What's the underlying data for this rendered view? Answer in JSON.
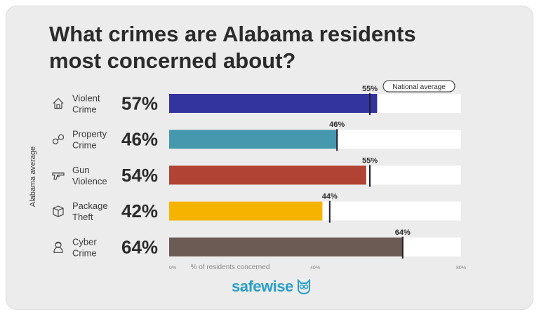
{
  "title": "What crimes are Alabama residents most concerned about?",
  "y_axis_label": "Alabama average",
  "legend_label": "National average",
  "brand": "safewise",
  "chart_data": {
    "type": "bar",
    "orientation": "horizontal",
    "categories": [
      {
        "line1": "Violent",
        "line2": "Crime",
        "icon": "house-icon"
      },
      {
        "line1": "Property",
        "line2": "Crime",
        "icon": "handcuffs-icon"
      },
      {
        "line1": "Gun",
        "line2": "Violence",
        "icon": "gun-icon"
      },
      {
        "line1": "Package",
        "line2": "Theft",
        "icon": "package-icon"
      },
      {
        "line1": "Cyber",
        "line2": "Crime",
        "icon": "hacker-icon"
      }
    ],
    "series": [
      {
        "name": "Alabama average",
        "values": [
          57,
          46,
          54,
          42,
          64
        ],
        "value_labels": [
          "57%",
          "46%",
          "54%",
          "42%",
          "64%"
        ]
      },
      {
        "name": "National average",
        "values": [
          55,
          46,
          55,
          44,
          64
        ],
        "value_labels": [
          "55%",
          "46%",
          "55%",
          "44%",
          "64%"
        ]
      }
    ],
    "colors": [
      "#34349e",
      "#4598ad",
      "#b04333",
      "#f6b400",
      "#6c5a54"
    ],
    "xlabel": "% of residents concerned",
    "xlim": [
      0,
      80
    ],
    "xticks": [
      "0%",
      "40%",
      "80%"
    ],
    "legend_placement": "top-right"
  }
}
